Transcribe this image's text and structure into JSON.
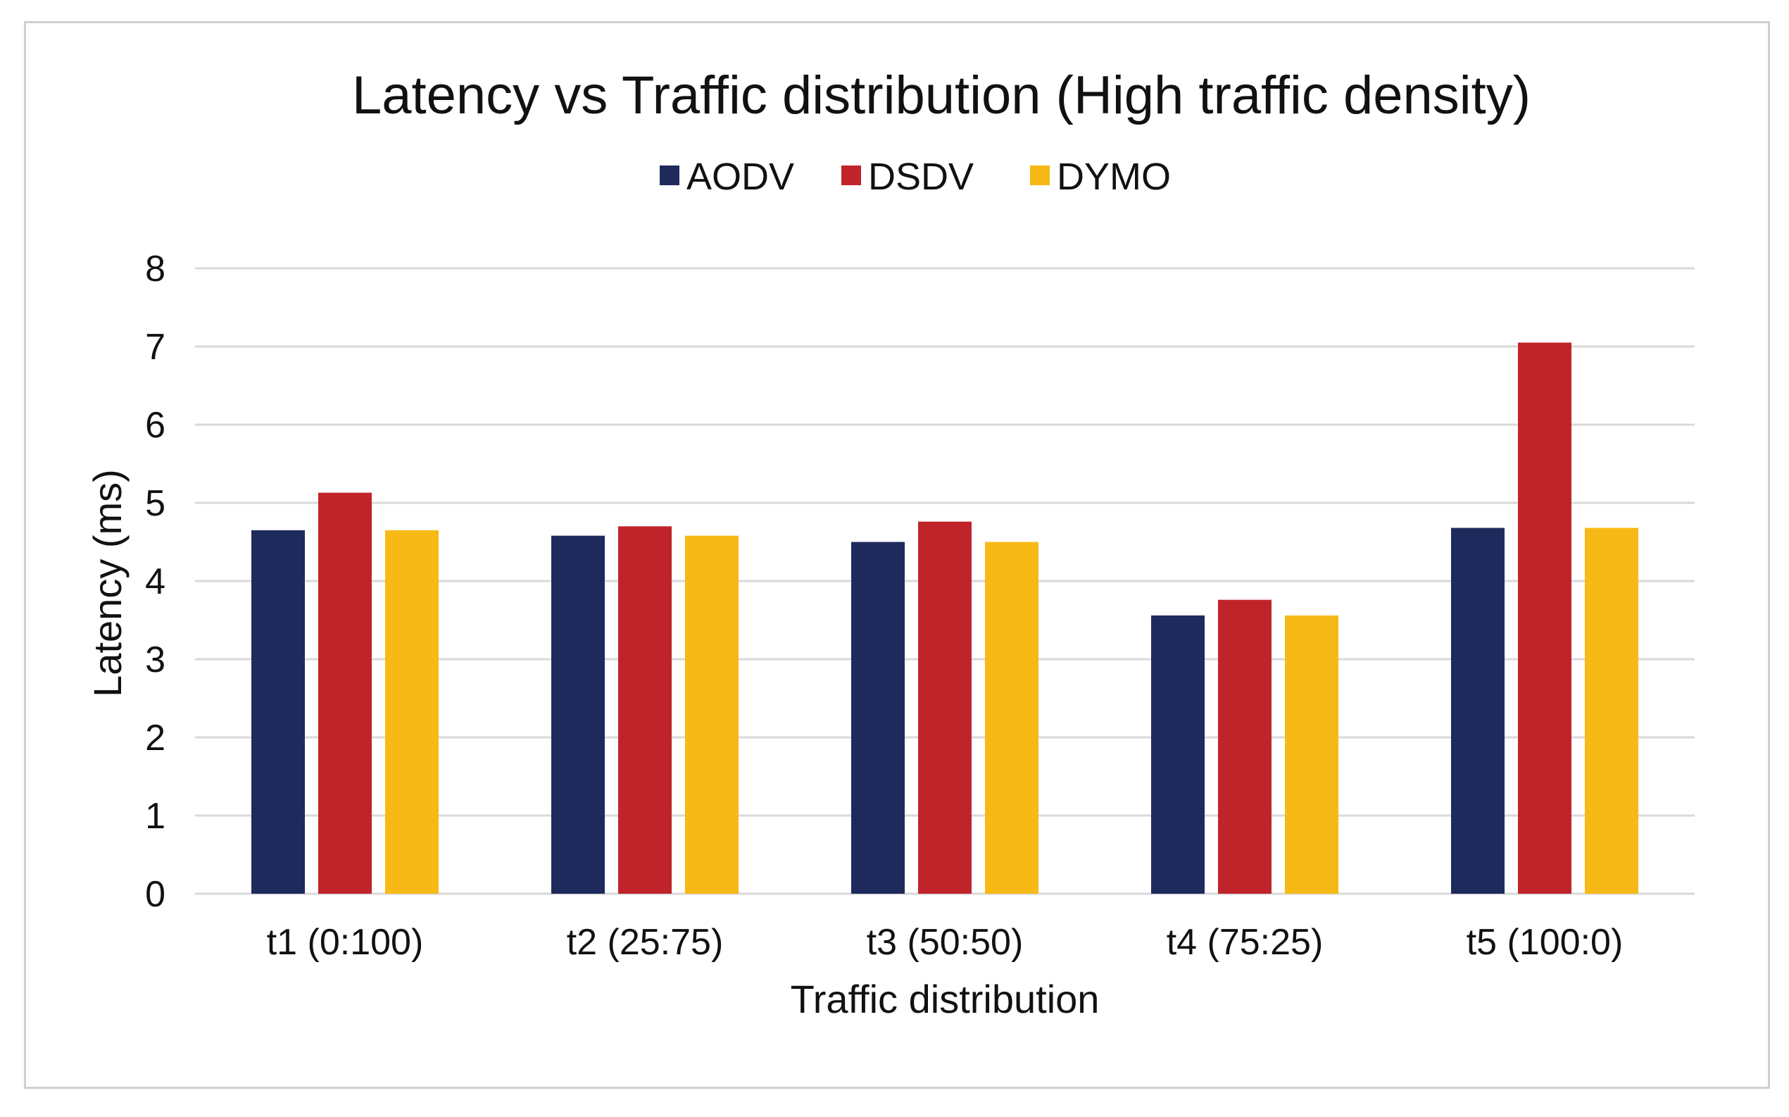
{
  "chart_data": {
    "type": "bar",
    "title": "Latency vs Traffic distribution (High traffic density)",
    "xlabel": "Traffic distribution",
    "ylabel": "Latency (ms)",
    "categories": [
      "t1 (0:100)",
      "t2 (25:75)",
      "t3 (50:50)",
      "t4 (75:25)",
      "t5 (100:0)"
    ],
    "series": [
      {
        "name": "AODV",
        "color": "#1f2a5c",
        "values": [
          4.65,
          4.58,
          4.5,
          3.56,
          4.68
        ]
      },
      {
        "name": "DSDV",
        "color": "#c0242a",
        "values": [
          5.13,
          4.7,
          4.76,
          3.76,
          7.05
        ]
      },
      {
        "name": "DYMO",
        "color": "#f7b916",
        "values": [
          4.65,
          4.58,
          4.5,
          3.56,
          4.68
        ]
      }
    ],
    "ylim": [
      0,
      8
    ],
    "yticks": [
      0,
      1,
      2,
      3,
      4,
      5,
      6,
      7,
      8
    ],
    "grid": true,
    "legend_position": "top"
  }
}
